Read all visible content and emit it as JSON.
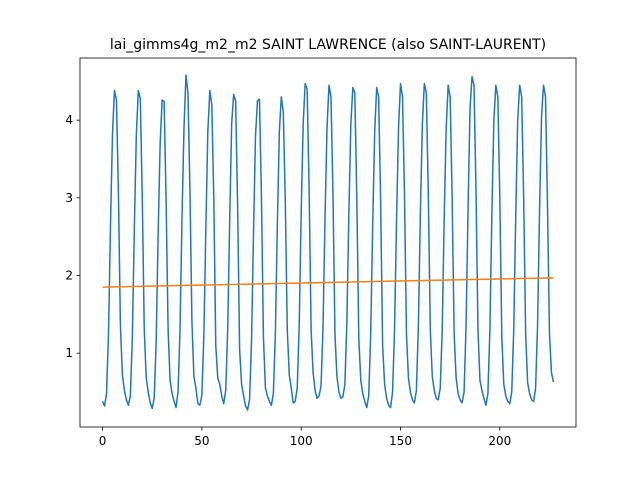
{
  "chart_data": {
    "type": "line",
    "title": "lai_gimms4g_m2_m2 SAINT LAWRENCE (also SAINT-LAURENT)",
    "x": [
      0,
      1,
      2,
      3,
      4,
      5,
      6,
      7,
      8,
      9,
      10,
      11,
      12,
      13,
      14,
      15,
      16,
      17,
      18,
      19,
      20,
      21,
      22,
      23,
      24,
      25,
      26,
      27,
      28,
      29,
      30,
      31,
      32,
      33,
      34,
      35,
      36,
      37,
      38,
      39,
      40,
      41,
      42,
      43,
      44,
      45,
      46,
      47,
      48,
      49,
      50,
      51,
      52,
      53,
      54,
      55,
      56,
      57,
      58,
      59,
      60,
      61,
      62,
      63,
      64,
      65,
      66,
      67,
      68,
      69,
      70,
      71,
      72,
      73,
      74,
      75,
      76,
      77,
      78,
      79,
      80,
      81,
      82,
      83,
      84,
      85,
      86,
      87,
      88,
      89,
      90,
      91,
      92,
      93,
      94,
      95,
      96,
      97,
      98,
      99,
      100,
      101,
      102,
      103,
      104,
      105,
      106,
      107,
      108,
      109,
      110,
      111,
      112,
      113,
      114,
      115,
      116,
      117,
      118,
      119,
      120,
      121,
      122,
      123,
      124,
      125,
      126,
      127,
      128,
      129,
      130,
      131,
      132,
      133,
      134,
      135,
      136,
      137,
      138,
      139,
      140,
      141,
      142,
      143,
      144,
      145,
      146,
      147,
      148,
      149,
      150,
      151,
      152,
      153,
      154,
      155,
      156,
      157,
      158,
      159,
      160,
      161,
      162,
      163,
      164,
      165,
      166,
      167,
      168,
      169,
      170,
      171,
      172,
      173,
      174,
      175,
      176,
      177,
      178,
      179,
      180,
      181,
      182,
      183,
      184,
      185,
      186,
      187,
      188,
      189,
      190,
      191,
      192,
      193,
      194,
      195,
      196,
      197,
      198,
      199,
      200,
      201,
      202,
      203,
      204,
      205,
      206,
      207,
      208,
      209,
      210,
      211,
      212,
      213,
      214,
      215,
      216,
      217,
      218,
      219,
      220,
      221,
      222,
      223,
      224,
      225,
      226,
      227
    ],
    "series": [
      {
        "color": "#1f77b4",
        "values": [
          0.38,
          0.32,
          0.48,
          1.25,
          2.65,
          3.82,
          4.38,
          4.26,
          3.05,
          1.35,
          0.72,
          0.52,
          0.4,
          0.33,
          0.45,
          1.2,
          2.6,
          3.8,
          4.38,
          4.28,
          3.0,
          1.3,
          0.68,
          0.5,
          0.36,
          0.29,
          0.42,
          1.15,
          2.55,
          3.7,
          4.26,
          4.24,
          2.95,
          1.3,
          0.65,
          0.48,
          0.38,
          0.3,
          0.5,
          1.3,
          2.75,
          3.9,
          4.58,
          4.35,
          3.1,
          1.4,
          0.7,
          0.55,
          0.35,
          0.33,
          0.46,
          1.22,
          2.6,
          3.85,
          4.38,
          4.2,
          3.0,
          1.1,
          0.68,
          0.6,
          0.45,
          0.35,
          0.52,
          1.3,
          2.7,
          3.95,
          4.33,
          4.25,
          2.9,
          1.05,
          0.6,
          0.45,
          0.32,
          0.27,
          0.4,
          1.15,
          2.55,
          3.8,
          4.25,
          4.27,
          3.0,
          1.2,
          0.55,
          0.45,
          0.38,
          0.33,
          0.48,
          1.25,
          2.65,
          3.85,
          4.3,
          4.1,
          2.95,
          1.3,
          0.72,
          0.55,
          0.36,
          0.38,
          0.55,
          1.35,
          2.8,
          3.95,
          4.47,
          4.4,
          3.1,
          1.3,
          0.75,
          0.52,
          0.42,
          0.45,
          0.58,
          1.35,
          2.75,
          3.9,
          4.45,
          4.3,
          3.05,
          1.25,
          0.7,
          0.5,
          0.42,
          0.44,
          0.6,
          1.4,
          2.8,
          3.95,
          4.42,
          4.35,
          3.0,
          1.2,
          0.65,
          0.48,
          0.38,
          0.3,
          0.45,
          1.25,
          2.65,
          3.85,
          4.42,
          4.3,
          2.95,
          1.1,
          0.6,
          0.42,
          0.33,
          0.3,
          0.5,
          1.3,
          2.7,
          3.9,
          4.47,
          4.3,
          3.05,
          1.25,
          0.68,
          0.5,
          0.4,
          0.36,
          0.52,
          1.35,
          2.8,
          3.95,
          4.47,
          4.35,
          3.05,
          1.3,
          0.7,
          0.52,
          0.42,
          0.4,
          0.55,
          1.3,
          2.75,
          3.9,
          4.45,
          4.3,
          3.0,
          1.25,
          0.68,
          0.48,
          0.4,
          0.36,
          0.5,
          1.35,
          2.85,
          4.15,
          4.56,
          4.45,
          3.1,
          1.3,
          0.65,
          0.52,
          0.42,
          0.33,
          0.48,
          1.3,
          2.8,
          4.0,
          4.45,
          4.3,
          3.0,
          1.2,
          0.6,
          0.45,
          0.38,
          0.35,
          0.5,
          1.3,
          2.75,
          4.0,
          4.45,
          4.3,
          3.0,
          1.25,
          0.62,
          0.48,
          0.4,
          0.38,
          0.55,
          1.35,
          2.85,
          4.05,
          4.45,
          4.3,
          2.9,
          1.25,
          0.75,
          0.63
        ]
      },
      {
        "color": "#ff7f0e",
        "x": [
          0,
          227
        ],
        "values": [
          1.85,
          1.97
        ]
      }
    ],
    "xlim": [
      -11.35,
      238.35
    ],
    "ylim": [
      0.05,
      4.8
    ],
    "xticks": [
      0,
      50,
      100,
      150,
      200
    ],
    "yticks": [
      1,
      2,
      3,
      4
    ],
    "grid": false
  }
}
